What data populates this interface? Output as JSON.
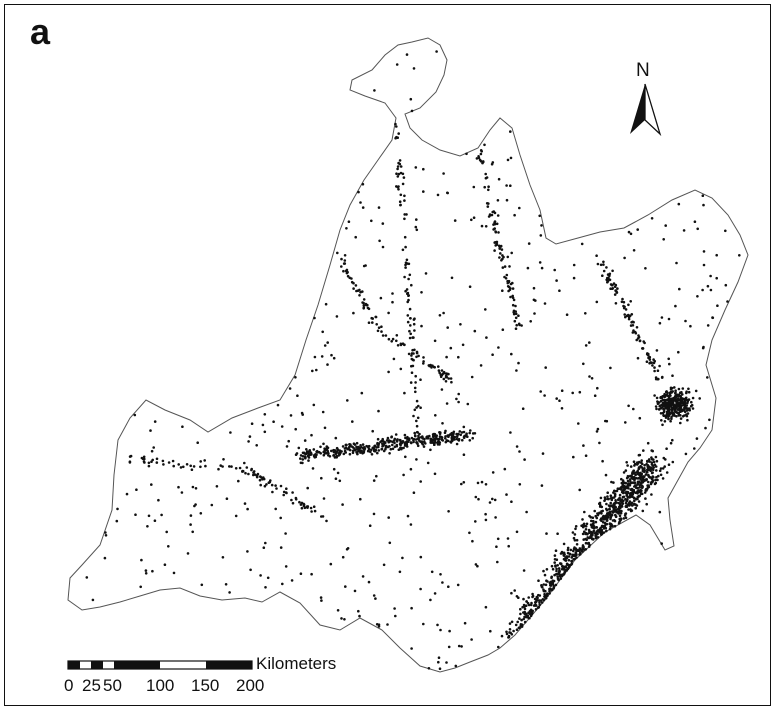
{
  "panel_label": "a",
  "north_arrow": {
    "label": "N"
  },
  "scale_bar": {
    "unit": "Kilometers",
    "tick_labels": [
      "0",
      "25",
      "50",
      "100",
      "150",
      "200"
    ]
  },
  "colors": {
    "outline": "#555555",
    "points": "#111111",
    "frame": "#111111"
  },
  "icons": {
    "north_arrow": "north-arrow-icon"
  }
}
